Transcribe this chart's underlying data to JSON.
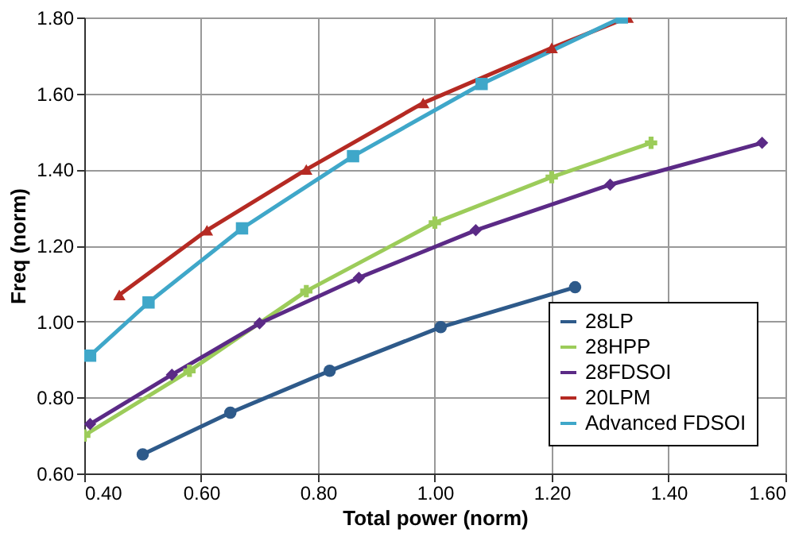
{
  "chart_data": {
    "type": "line",
    "xlabel": "Total power (norm)",
    "ylabel": "Freq (norm)",
    "xlim": [
      0.4,
      1.6
    ],
    "xticks": [
      {
        "value": 0.4,
        "label": "0.40"
      },
      {
        "value": 0.6,
        "label": "0.60"
      },
      {
        "value": 0.8,
        "label": "0.80"
      },
      {
        "value": 1.0,
        "label": "1.00"
      },
      {
        "value": 1.2,
        "label": "1.20"
      },
      {
        "value": 1.4,
        "label": "1.40"
      },
      {
        "value": 1.6,
        "label": "1.60"
      }
    ],
    "ylim": [
      0.6,
      1.8
    ],
    "yticks": [
      {
        "value": 0.6,
        "label": "0.60"
      },
      {
        "value": 0.8,
        "label": "0.80"
      },
      {
        "value": 1.0,
        "label": "1.00"
      },
      {
        "value": 1.2,
        "label": "1.20"
      },
      {
        "value": 1.4,
        "label": "1.40"
      },
      {
        "value": 1.6,
        "label": "1.60"
      },
      {
        "value": 1.8,
        "label": "1.80"
      }
    ],
    "grid": true,
    "legend": "bottom right",
    "line_style": "solid",
    "series": [
      {
        "name": "28LP",
        "color": "#2e5a8a",
        "marker": "circle",
        "x": [
          0.5,
          0.65,
          0.82,
          1.01,
          1.24
        ],
        "values": [
          0.65,
          0.76,
          0.87,
          0.985,
          1.09
        ]
      },
      {
        "name": "28HPP",
        "color": "#9ccc5a",
        "marker": "cross",
        "x": [
          0.4,
          0.58,
          0.78,
          1.0,
          1.2,
          1.37
        ],
        "values": [
          0.7,
          0.87,
          1.08,
          1.26,
          1.38,
          1.47
        ]
      },
      {
        "name": "28FDSOI",
        "color": "#5b2a86",
        "marker": "diamond",
        "x": [
          0.41,
          0.55,
          0.7,
          0.87,
          1.07,
          1.3,
          1.56
        ],
        "values": [
          0.73,
          0.86,
          0.995,
          1.115,
          1.24,
          1.36,
          1.47
        ]
      },
      {
        "name": "20LPM",
        "color": "#b52a23",
        "marker": "triangle",
        "x": [
          0.46,
          0.61,
          0.78,
          0.98,
          1.2,
          1.33
        ],
        "values": [
          1.07,
          1.24,
          1.4,
          1.575,
          1.72,
          1.8
        ]
      },
      {
        "name": "Advanced FDSOI",
        "color": "#3fa7c9",
        "marker": "square",
        "x": [
          0.41,
          0.51,
          0.67,
          0.86,
          1.08,
          1.32
        ],
        "values": [
          0.91,
          1.05,
          1.245,
          1.435,
          1.625,
          1.8
        ]
      }
    ]
  }
}
